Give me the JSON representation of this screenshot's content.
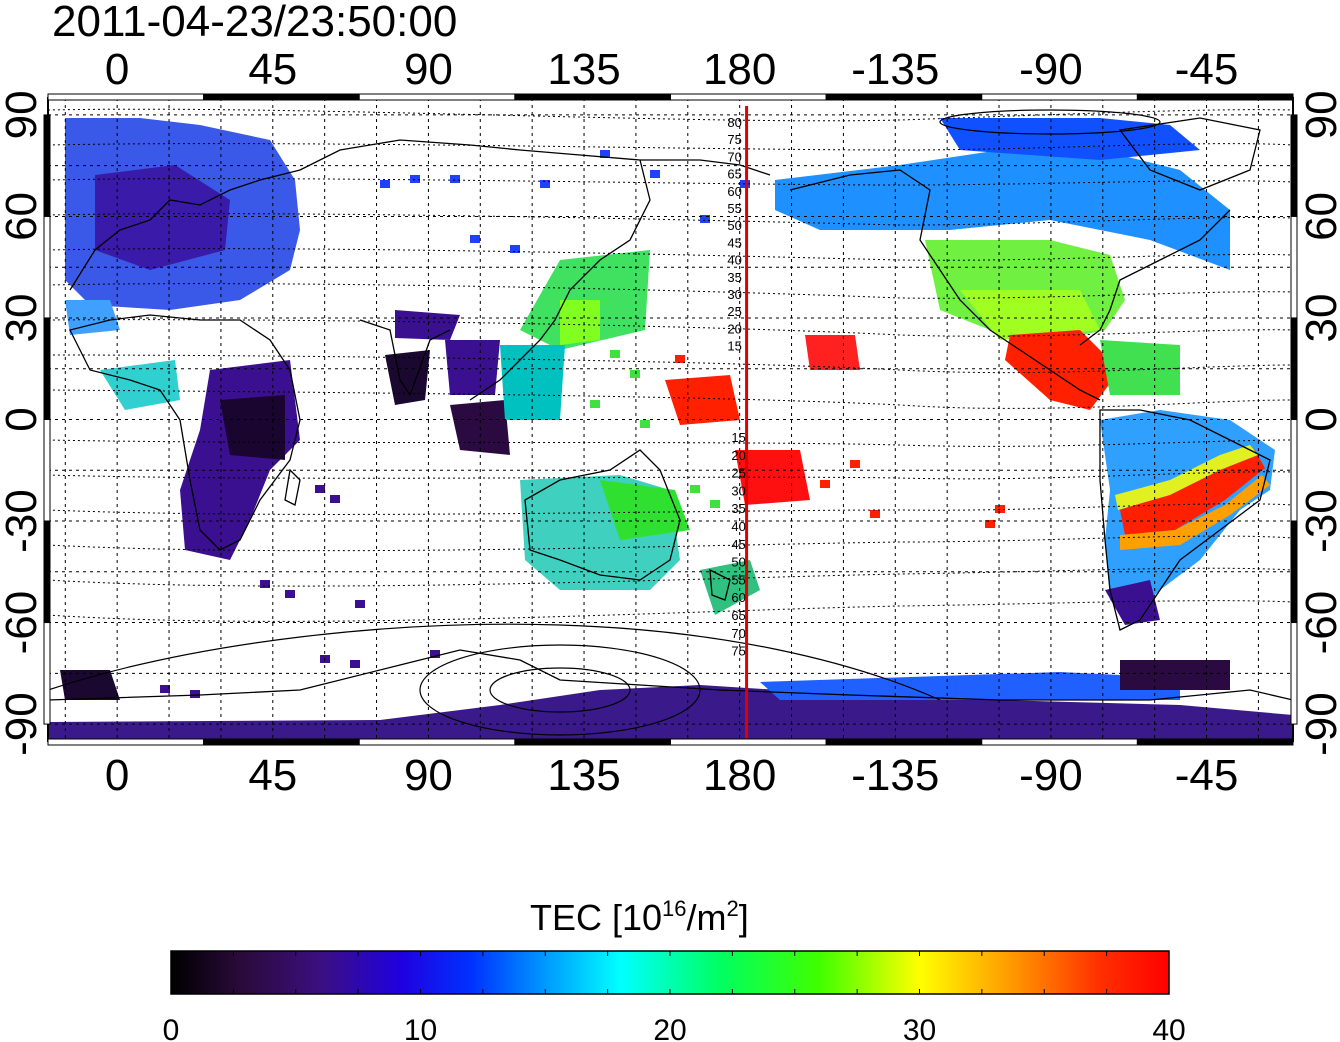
{
  "title": "2011-04-23/23:50:00",
  "map": {
    "lon_ticks": [
      "0",
      "45",
      "90",
      "135",
      "180",
      "-135",
      "-90",
      "-45"
    ],
    "lat_ticks": [
      "90",
      "60",
      "30",
      "0",
      "-30",
      "-60",
      "-90"
    ],
    "lon_values": [
      0,
      45,
      90,
      135,
      180,
      225,
      270,
      315
    ],
    "lat_values": [
      90,
      60,
      30,
      0,
      -30,
      -60,
      -90
    ],
    "lon_range": [
      -20,
      340
    ],
    "lat_range": [
      -95,
      95
    ],
    "grid": true,
    "reference_meridian_lon": 182,
    "reference_meridian_color": "#e00000",
    "contour_labels_north": [
      "80",
      "75",
      "70",
      "65",
      "60",
      "55",
      "50",
      "45",
      "40",
      "35",
      "30",
      "25",
      "20",
      "15"
    ],
    "contour_labels_south": [
      "15",
      "20",
      "25",
      "30",
      "35",
      "40",
      "45",
      "50",
      "55",
      "60",
      "65",
      "70",
      "75"
    ]
  },
  "colorbar": {
    "title": "TEC  [10",
    "title_sup": "16",
    "title_mid": "/m",
    "title_sup2": "2",
    "title_end": "]",
    "min": 0,
    "max": 40,
    "tick_labels": [
      "0",
      "10",
      "20",
      "30",
      "40"
    ],
    "colormap": "jet-like (black-purple-blue-cyan-green-yellow-red)"
  }
}
